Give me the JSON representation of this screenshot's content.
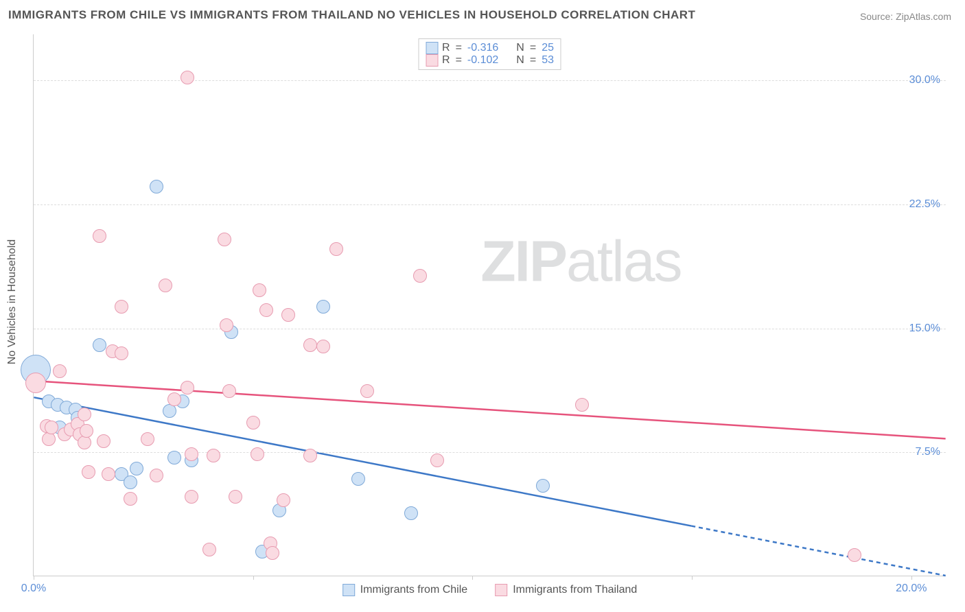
{
  "title": "IMMIGRANTS FROM CHILE VS IMMIGRANTS FROM THAILAND NO VEHICLES IN HOUSEHOLD CORRELATION CHART",
  "source_label": "Source: ",
  "source_name": "ZipAtlas.com",
  "watermark_a": "ZIP",
  "watermark_b": "atlas",
  "y_axis_title": "No Vehicles in Household",
  "chart": {
    "type": "scatter",
    "background_color": "#ffffff",
    "grid_color": "#dddddd",
    "axis_color": "#cccccc",
    "tick_label_color": "#5b8dd6",
    "xlim": [
      0.0,
      20.8
    ],
    "ylim": [
      0.0,
      32.8
    ],
    "x_ticks": [
      0.0,
      5.0,
      10.0,
      15.0,
      20.0
    ],
    "x_tick_labels": [
      "0.0%",
      "",
      "",
      "",
      "20.0%"
    ],
    "y_ticks": [
      7.5,
      15.0,
      22.5,
      30.0
    ],
    "y_tick_labels": [
      "7.5%",
      "15.0%",
      "22.5%",
      "30.0%"
    ],
    "series": [
      {
        "name": "Immigrants from Chile",
        "fill": "#cfe2f6",
        "stroke": "#7fa9d8",
        "line_color": "#3d78c7",
        "legend_fill": "#cfe2f6",
        "legend_stroke": "#7fa9d8",
        "r_label": "R",
        "r_value": "-0.316",
        "n_label": "N",
        "n_value": "25",
        "marker_radius": 10,
        "trend": {
          "x1": 0.0,
          "y1": 10.8,
          "x2": 20.8,
          "y2": 0.0,
          "dash_after_x": 15.0
        },
        "points": [
          {
            "x": 0.05,
            "y": 12.5,
            "r": 22
          },
          {
            "x": 0.35,
            "y": 10.6
          },
          {
            "x": 0.55,
            "y": 10.4
          },
          {
            "x": 0.75,
            "y": 10.2
          },
          {
            "x": 0.95,
            "y": 10.1
          },
          {
            "x": 0.6,
            "y": 9.0
          },
          {
            "x": 1.0,
            "y": 9.6
          },
          {
            "x": 1.5,
            "y": 14.0
          },
          {
            "x": 2.0,
            "y": 6.2
          },
          {
            "x": 2.2,
            "y": 5.7
          },
          {
            "x": 2.35,
            "y": 6.5
          },
          {
            "x": 2.8,
            "y": 23.6
          },
          {
            "x": 3.1,
            "y": 10.0
          },
          {
            "x": 3.2,
            "y": 7.2
          },
          {
            "x": 3.4,
            "y": 10.6
          },
          {
            "x": 3.6,
            "y": 7.0
          },
          {
            "x": 4.5,
            "y": 14.8
          },
          {
            "x": 5.2,
            "y": 1.5
          },
          {
            "x": 5.6,
            "y": 4.0
          },
          {
            "x": 6.6,
            "y": 16.3
          },
          {
            "x": 7.4,
            "y": 5.9
          },
          {
            "x": 8.6,
            "y": 3.8
          },
          {
            "x": 11.6,
            "y": 5.5
          }
        ]
      },
      {
        "name": "Immigrants from Thailand",
        "fill": "#fadbe2",
        "stroke": "#e79bb0",
        "line_color": "#e6537c",
        "legend_fill": "#fadbe2",
        "legend_stroke": "#e79bb0",
        "r_label": "R",
        "r_value": "-0.102",
        "n_label": "N",
        "n_value": "53",
        "marker_radius": 10,
        "trend": {
          "x1": 0.0,
          "y1": 11.8,
          "x2": 20.8,
          "y2": 8.3
        },
        "points": [
          {
            "x": 0.05,
            "y": 11.7,
            "r": 15
          },
          {
            "x": 0.3,
            "y": 9.1
          },
          {
            "x": 0.35,
            "y": 8.3
          },
          {
            "x": 0.4,
            "y": 9.0
          },
          {
            "x": 0.6,
            "y": 12.4
          },
          {
            "x": 0.7,
            "y": 8.6
          },
          {
            "x": 0.85,
            "y": 8.9
          },
          {
            "x": 1.0,
            "y": 9.2
          },
          {
            "x": 1.05,
            "y": 8.6
          },
          {
            "x": 1.15,
            "y": 9.8
          },
          {
            "x": 1.15,
            "y": 8.1
          },
          {
            "x": 1.2,
            "y": 8.8
          },
          {
            "x": 1.25,
            "y": 6.3
          },
          {
            "x": 1.5,
            "y": 20.6
          },
          {
            "x": 1.6,
            "y": 8.2
          },
          {
            "x": 1.7,
            "y": 6.2
          },
          {
            "x": 1.8,
            "y": 13.6
          },
          {
            "x": 2.0,
            "y": 16.3
          },
          {
            "x": 2.0,
            "y": 13.5
          },
          {
            "x": 2.2,
            "y": 4.7
          },
          {
            "x": 2.6,
            "y": 8.3
          },
          {
            "x": 2.8,
            "y": 6.1
          },
          {
            "x": 3.0,
            "y": 17.6
          },
          {
            "x": 3.2,
            "y": 10.7
          },
          {
            "x": 3.5,
            "y": 30.2
          },
          {
            "x": 3.5,
            "y": 11.4
          },
          {
            "x": 3.6,
            "y": 7.4
          },
          {
            "x": 3.6,
            "y": 4.8
          },
          {
            "x": 4.0,
            "y": 1.6
          },
          {
            "x": 4.1,
            "y": 7.3
          },
          {
            "x": 4.35,
            "y": 20.4
          },
          {
            "x": 4.4,
            "y": 15.2
          },
          {
            "x": 4.45,
            "y": 11.2
          },
          {
            "x": 4.6,
            "y": 4.8
          },
          {
            "x": 5.0,
            "y": 9.3
          },
          {
            "x": 5.1,
            "y": 7.4
          },
          {
            "x": 5.15,
            "y": 17.3
          },
          {
            "x": 5.3,
            "y": 16.1
          },
          {
            "x": 5.4,
            "y": 2.0
          },
          {
            "x": 5.45,
            "y": 1.4
          },
          {
            "x": 5.7,
            "y": 4.6
          },
          {
            "x": 5.8,
            "y": 15.8
          },
          {
            "x": 6.3,
            "y": 14.0
          },
          {
            "x": 6.3,
            "y": 7.3
          },
          {
            "x": 6.6,
            "y": 13.9
          },
          {
            "x": 6.9,
            "y": 19.8
          },
          {
            "x": 7.6,
            "y": 11.2
          },
          {
            "x": 8.8,
            "y": 18.2
          },
          {
            "x": 9.2,
            "y": 7.0
          },
          {
            "x": 12.5,
            "y": 10.4
          },
          {
            "x": 18.7,
            "y": 1.3
          }
        ]
      }
    ]
  }
}
